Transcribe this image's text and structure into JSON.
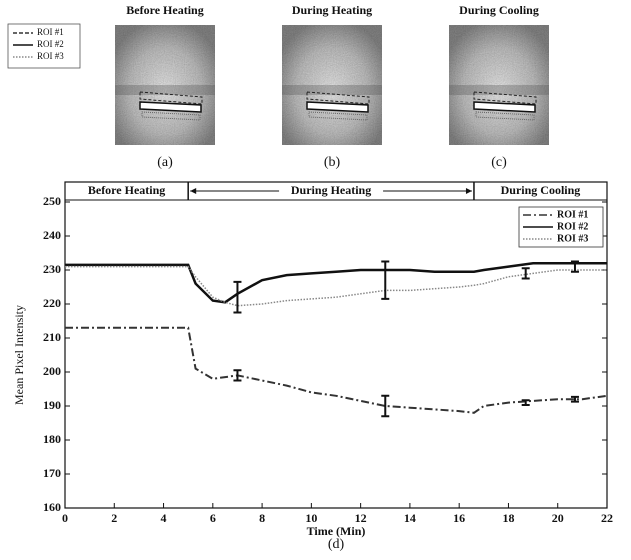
{
  "panels": [
    {
      "title": "Before Heating",
      "caption": "(a)"
    },
    {
      "title": "During Heating",
      "caption": "(b)"
    },
    {
      "title": "During Cooling",
      "caption": "(c)"
    }
  ],
  "panel_legend": [
    "ROI #1",
    "ROI #2",
    "ROI #3"
  ],
  "chart_data": {
    "type": "line",
    "caption": "(d)",
    "x_label": "Time (Min)",
    "y_label": "Mean Pixel Intensity",
    "phases": [
      {
        "label": "Before Heating",
        "start": 0,
        "end": 5
      },
      {
        "label": "During Heating",
        "start": 5,
        "end": 16.6
      },
      {
        "label": "During Cooling",
        "start": 16.6,
        "end": 22
      }
    ],
    "x": [
      0,
      2,
      4,
      5,
      5.3,
      6,
      6.5,
      7,
      8,
      9,
      10,
      11,
      12,
      13,
      14,
      15,
      16,
      16.6,
      17,
      18,
      19,
      20,
      21,
      22
    ],
    "series": [
      {
        "name": "ROI #1",
        "color": "#333333",
        "dash": "8 3 2 3",
        "width": 2,
        "values": [
          213,
          213,
          213,
          213,
          201,
          198,
          198.5,
          199,
          197.5,
          196,
          194,
          193,
          191.5,
          190,
          189.5,
          189,
          188.5,
          188,
          190,
          191,
          191.5,
          192,
          192,
          193
        ]
      },
      {
        "name": "ROI #2",
        "color": "#111111",
        "dash": "",
        "width": 2.5,
        "values": [
          231.5,
          231.5,
          231.5,
          231.5,
          226,
          221,
          220.5,
          223,
          227,
          228.5,
          229,
          229.5,
          230,
          230,
          230,
          229.5,
          229.5,
          229.5,
          230,
          231,
          232,
          232,
          232,
          232
        ]
      },
      {
        "name": "ROI #3",
        "color": "#888888",
        "dash": "1.5 1.5",
        "width": 1.5,
        "values": [
          231,
          231,
          231,
          231,
          228,
          222,
          220.5,
          219.5,
          220,
          221,
          221.5,
          222,
          223,
          224,
          224,
          224.5,
          225,
          225.5,
          226,
          228,
          229,
          230,
          230,
          230
        ]
      }
    ],
    "error_bars": [
      {
        "x": 7,
        "value": 199,
        "error": 1.5
      },
      {
        "x": 13,
        "value": 190,
        "error": 3
      },
      {
        "x": 18.7,
        "value": 191,
        "error": 0.7
      },
      {
        "x": 20.7,
        "value": 192,
        "error": 0.7
      },
      {
        "x": 7,
        "value": 222,
        "error": 4.5
      },
      {
        "x": 13,
        "value": 227,
        "error": 5.5
      },
      {
        "x": 18.7,
        "value": 229,
        "error": 1.5
      },
      {
        "x": 20.7,
        "value": 231,
        "error": 1.5
      }
    ],
    "xlim": [
      0,
      22
    ],
    "ylim": [
      160,
      250
    ],
    "xticks": [
      0,
      2,
      4,
      6,
      8,
      10,
      12,
      14,
      16,
      18,
      20,
      22
    ],
    "yticks": [
      160,
      170,
      180,
      190,
      200,
      210,
      220,
      230,
      240,
      250
    ],
    "legend": "upper right"
  }
}
